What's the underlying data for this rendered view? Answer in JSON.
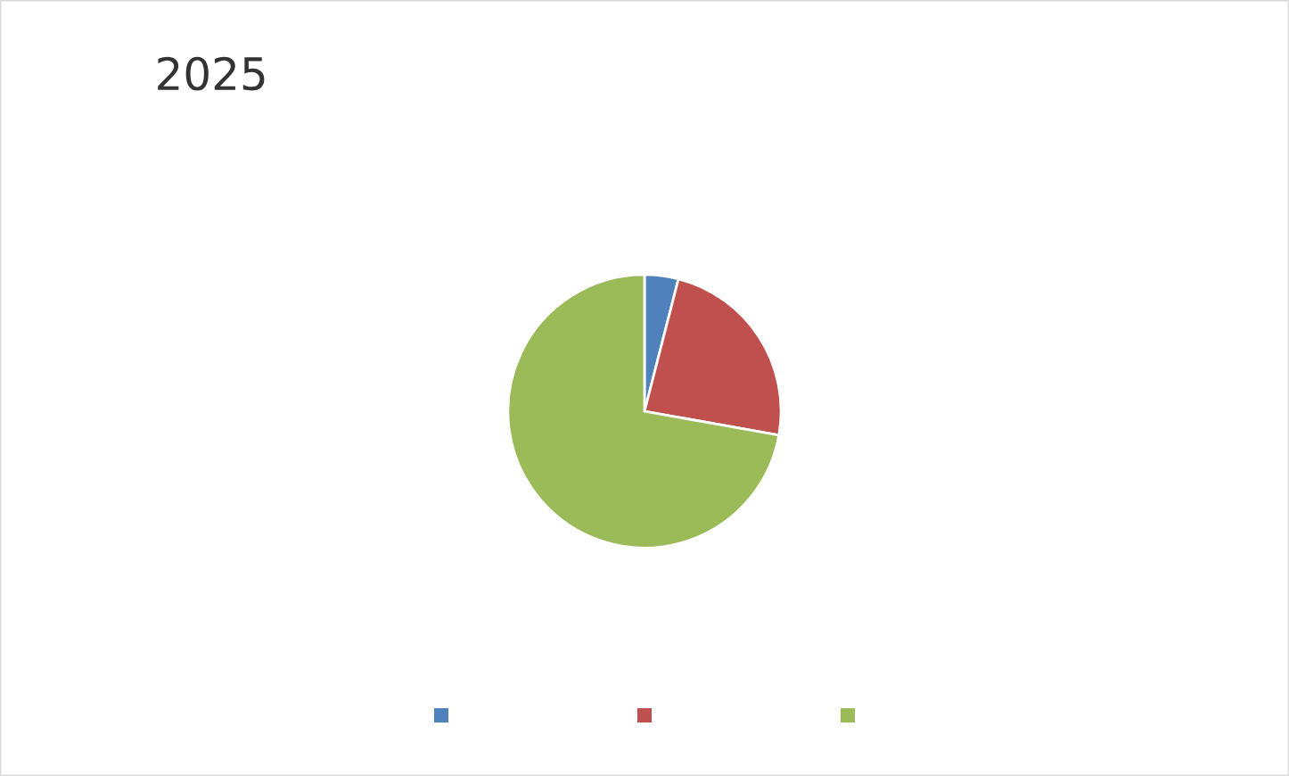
{
  "chart_data": {
    "type": "pie",
    "title": "2025",
    "categories": [
      null,
      null,
      null
    ],
    "values": [
      4.0,
      23.8,
      72.2
    ],
    "colors": [
      "#4f81bd",
      "#c0504d",
      "#9bbb59"
    ]
  }
}
